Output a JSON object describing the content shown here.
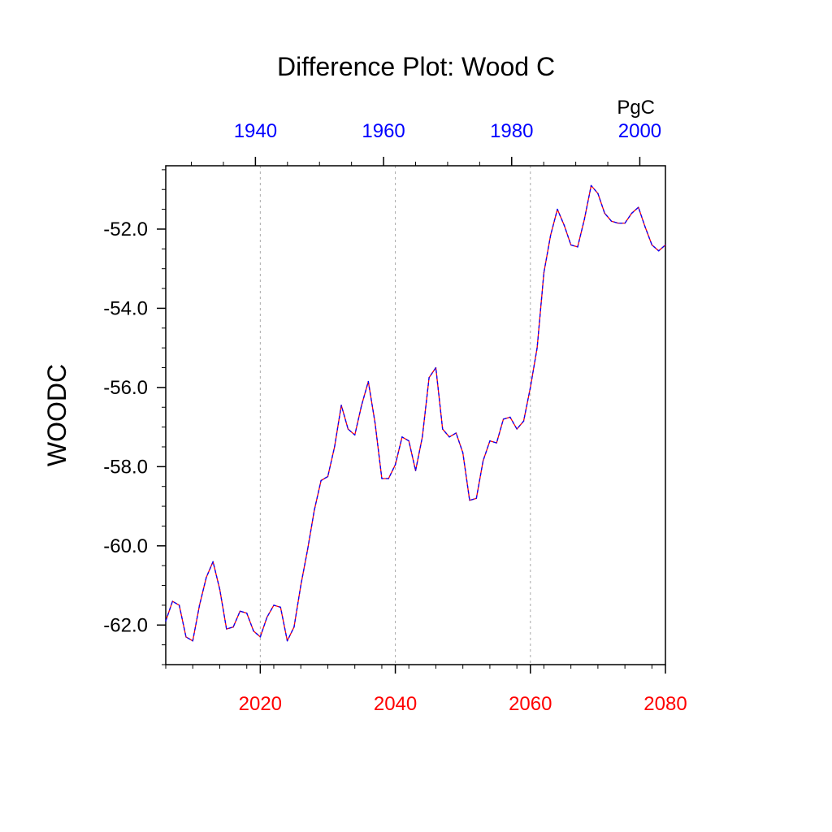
{
  "chart_data": {
    "type": "line",
    "title": "Difference Plot: Wood C",
    "ylabel": "WOODC",
    "units": "PgC",
    "grid": "vertical-dotted",
    "colors": {
      "axis": "#000000",
      "bottom_ticks": "#ff0000",
      "top_ticks": "#0000ff",
      "line_primary": "#ff0000",
      "line_secondary": "#0000ff",
      "grid": "#aaaaaa"
    },
    "x_bottom": {
      "range": [
        2006,
        2080
      ],
      "ticks": [
        2020,
        2040,
        2060,
        2080
      ],
      "tick_labels": [
        "2020",
        "2040",
        "2060",
        "2080"
      ],
      "minor_step": 4
    },
    "x_top": {
      "range": [
        1926,
        2004
      ],
      "ticks": [
        1940,
        1960,
        1980,
        2000
      ],
      "tick_labels": [
        "1940",
        "1960",
        "1980",
        "2000"
      ],
      "minor_step": 5
    },
    "y": {
      "range": [
        -63.0,
        -50.4
      ],
      "ticks": [
        -62,
        -60,
        -58,
        -56,
        -54,
        -52
      ],
      "tick_labels": [
        "-62.0",
        "-60.0",
        "-58.0",
        "-56.0",
        "-54.0",
        "-52.0"
      ],
      "minor_step": 0.5
    },
    "series": [
      {
        "x": [
          2006,
          2007,
          2008,
          2009,
          2010,
          2011,
          2012,
          2013,
          2014,
          2015,
          2016,
          2017,
          2018,
          2019,
          2020,
          2021,
          2022,
          2023,
          2024,
          2025,
          2026,
          2027,
          2028,
          2029,
          2030,
          2031,
          2032,
          2033,
          2034,
          2035,
          2036,
          2037,
          2038,
          2039,
          2040,
          2041,
          2042,
          2043,
          2044,
          2045,
          2046,
          2047,
          2048,
          2049,
          2050,
          2051,
          2052,
          2053,
          2054,
          2055,
          2056,
          2057,
          2058,
          2059,
          2060,
          2061,
          2062,
          2063,
          2064,
          2065,
          2066,
          2067,
          2068,
          2069,
          2070,
          2071,
          2072,
          2073,
          2074,
          2075,
          2076,
          2077,
          2078,
          2079,
          2080
        ],
        "values": [
          -61.9,
          -61.4,
          -61.5,
          -62.3,
          -62.4,
          -61.5,
          -60.8,
          -60.4,
          -61.1,
          -62.1,
          -62.05,
          -61.65,
          -61.7,
          -62.15,
          -62.3,
          -61.8,
          -61.5,
          -61.55,
          -62.4,
          -62.05,
          -61.0,
          -60.1,
          -59.1,
          -58.35,
          -58.25,
          -57.5,
          -56.45,
          -57.05,
          -57.2,
          -56.45,
          -55.85,
          -56.9,
          -58.3,
          -58.3,
          -57.95,
          -57.25,
          -57.35,
          -58.1,
          -57.25,
          -55.75,
          -55.5,
          -57.05,
          -57.25,
          -57.15,
          -57.65,
          -58.85,
          -58.8,
          -57.85,
          -57.35,
          -57.4,
          -56.8,
          -56.75,
          -57.05,
          -56.85,
          -56.0,
          -55.0,
          -53.1,
          -52.15,
          -51.5,
          -51.9,
          -52.4,
          -52.45,
          -51.75,
          -50.9,
          -51.1,
          -51.6,
          -51.8,
          -51.85,
          -51.85,
          -51.6,
          -51.45,
          -51.95,
          -52.4,
          -52.55,
          -52.4
        ]
      }
    ]
  }
}
